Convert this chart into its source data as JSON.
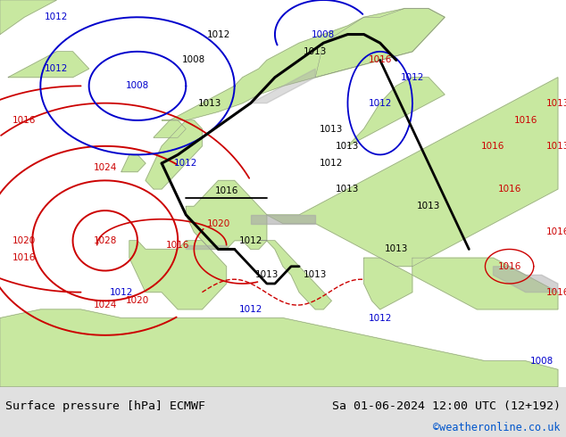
{
  "title_left": "Surface pressure [hPa] ECMWF",
  "title_right": "Sa 01-06-2024 12:00 UTC (12+192)",
  "copyright": "©weatheronline.co.uk",
  "ocean_color": "#dce8f0",
  "land_color": "#c8e8a0",
  "mountain_color": "#a8a8a8",
  "border_color": "#808080",
  "text_black": "#000000",
  "text_red": "#cc0000",
  "text_blue": "#0000cc",
  "text_copyright": "#0055cc",
  "bar_color": "#e0e0e0",
  "figsize": [
    6.34,
    4.9
  ],
  "dpi": 100,
  "font_caption": 9.5,
  "font_copyright": 8.5,
  "font_label": 7.5
}
